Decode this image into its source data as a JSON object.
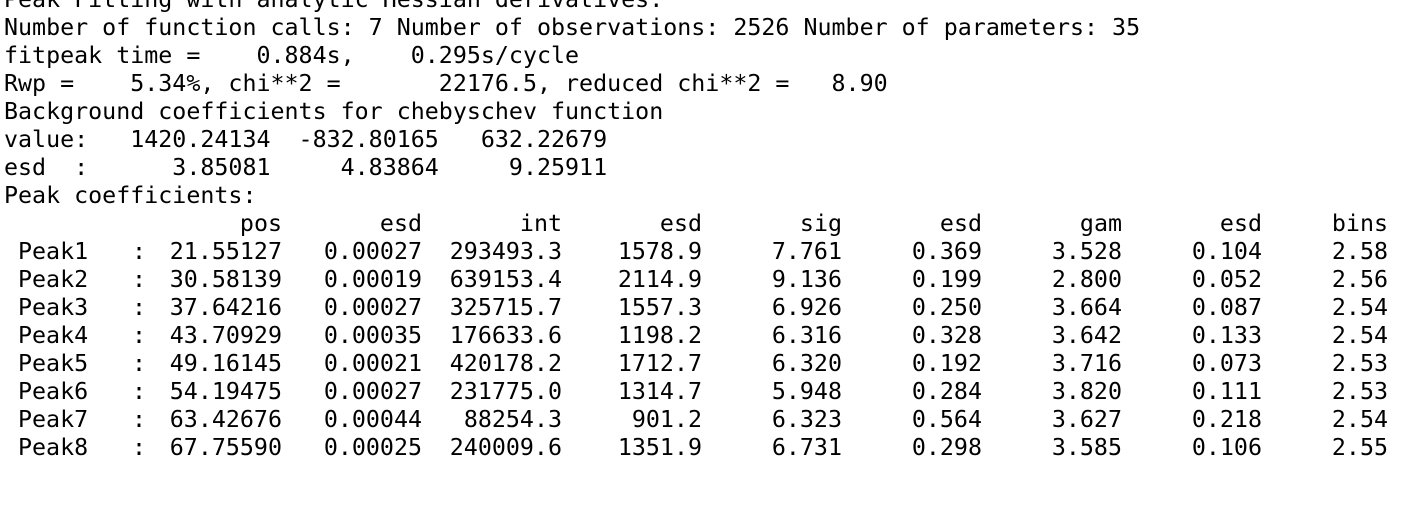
{
  "console": {
    "lines": [
      "Peak Fitting with analytic Hessian derivatives:",
      "Number of function calls: 7 Number of observations: 2526 Number of parameters: 35",
      "fitpeak time =    0.884s,    0.295s/cycle",
      "Rwp =    5.34%, chi**2 =       22176.5, reduced chi**2 =   8.90",
      "Background coefficients for chebyschev function",
      "value:   1420.24134  -832.80165   632.22679",
      "esd  :      3.85081     4.83864     9.25911",
      "Peak coefficients:"
    ],
    "peak_table": {
      "headers": [
        "pos",
        "esd",
        "int",
        "esd",
        "sig",
        "esd",
        "gam",
        "esd",
        "bins"
      ],
      "separator": ":",
      "rows": [
        {
          "name": "Peak1",
          "values": [
            "21.55127",
            "0.00027",
            "293493.3",
            "1578.9",
            "7.761",
            "0.369",
            "3.528",
            "0.104",
            "2.58"
          ]
        },
        {
          "name": "Peak2",
          "values": [
            "30.58139",
            "0.00019",
            "639153.4",
            "2114.9",
            "9.136",
            "0.199",
            "2.800",
            "0.052",
            "2.56"
          ]
        },
        {
          "name": "Peak3",
          "values": [
            "37.64216",
            "0.00027",
            "325715.7",
            "1557.3",
            "6.926",
            "0.250",
            "3.664",
            "0.087",
            "2.54"
          ]
        },
        {
          "name": "Peak4",
          "values": [
            "43.70929",
            "0.00035",
            "176633.6",
            "1198.2",
            "6.316",
            "0.328",
            "3.642",
            "0.133",
            "2.54"
          ]
        },
        {
          "name": "Peak5",
          "values": [
            "49.16145",
            "0.00021",
            "420178.2",
            "1712.7",
            "6.320",
            "0.192",
            "3.716",
            "0.073",
            "2.53"
          ]
        },
        {
          "name": "Peak6",
          "values": [
            "54.19475",
            "0.00027",
            "231775.0",
            "1314.7",
            "5.948",
            "0.284",
            "3.820",
            "0.111",
            "2.53"
          ]
        },
        {
          "name": "Peak7",
          "values": [
            "63.42676",
            "0.00044",
            "88254.3",
            "901.2",
            "6.323",
            "0.564",
            "3.627",
            "0.218",
            "2.54"
          ]
        },
        {
          "name": "Peak8",
          "values": [
            "67.75590",
            "0.00025",
            "240009.6",
            "1351.9",
            "6.731",
            "0.298",
            "3.585",
            "0.106",
            "2.55"
          ]
        }
      ]
    }
  },
  "colors": {
    "background": "#ffffff",
    "text": "#000000"
  }
}
